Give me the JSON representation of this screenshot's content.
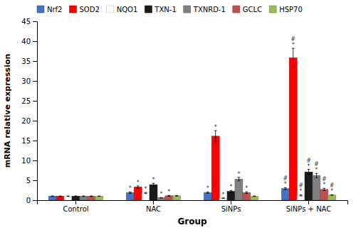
{
  "chart_data": {
    "type": "bar",
    "categories": [
      "Control",
      "NAC",
      "SiNPs",
      "SiNPs + NAC"
    ],
    "xlabel": "Group",
    "ylabel": "mRNA relative expression",
    "series": [
      {
        "name": "Nrf2",
        "color": "#4472c4",
        "values": [
          1.0,
          1.9,
          1.9,
          2.9
        ],
        "errors": [
          0.08,
          0.18,
          0.18,
          0.25
        ],
        "annotations": [
          null,
          [
            "*"
          ],
          [
            "*"
          ],
          [
            "*",
            "#"
          ]
        ]
      },
      {
        "name": "SOD2",
        "color": "#ff0000",
        "values": [
          1.0,
          3.3,
          16.1,
          35.8
        ],
        "errors": [
          0.08,
          0.28,
          1.4,
          2.4
        ],
        "annotations": [
          null,
          [
            "*"
          ],
          [
            "*"
          ],
          [
            "*",
            "#"
          ]
        ]
      },
      {
        "name": "NQO1",
        "color": "#ffffff",
        "values": [
          1.0,
          1.8,
          0.5,
          1.2
        ],
        "errors": [
          0.05,
          0.15,
          0.08,
          0.15
        ],
        "annotations": [
          null,
          [
            "*"
          ],
          [
            "*"
          ],
          [
            "*",
            "#"
          ]
        ]
      },
      {
        "name": "TXN-1",
        "color": "#1a1a1a",
        "values": [
          1.0,
          3.9,
          2.2,
          7.1
        ],
        "errors": [
          0.08,
          0.35,
          0.25,
          0.65
        ],
        "annotations": [
          null,
          [
            "*"
          ],
          [
            "*"
          ],
          [
            "*",
            "#"
          ]
        ]
      },
      {
        "name": "TXNRD-1",
        "color": "#808080",
        "values": [
          1.0,
          0.6,
          5.3,
          6.2
        ],
        "errors": [
          0.08,
          0.08,
          0.45,
          0.55
        ],
        "annotations": [
          null,
          [
            "*"
          ],
          [
            "*"
          ],
          [
            "*",
            "#"
          ]
        ]
      },
      {
        "name": "GCLC",
        "color": "#c0504d",
        "values": [
          1.0,
          1.1,
          1.9,
          2.7
        ],
        "errors": [
          0.08,
          0.12,
          0.22,
          0.3
        ],
        "annotations": [
          null,
          [
            "*"
          ],
          [
            "*"
          ],
          [
            "*",
            "#"
          ]
        ]
      },
      {
        "name": "HSP70",
        "color": "#9bbb59",
        "values": [
          1.0,
          1.1,
          1.0,
          1.3
        ],
        "errors": [
          0.05,
          0.08,
          0.05,
          0.08
        ],
        "annotations": [
          null,
          null,
          null,
          [
            "*",
            "#"
          ]
        ]
      }
    ],
    "ylim": [
      0,
      45
    ],
    "yticks": [
      0,
      5,
      10,
      15,
      20,
      25,
      30,
      35,
      40,
      45
    ],
    "grid": false,
    "legend": "top"
  }
}
